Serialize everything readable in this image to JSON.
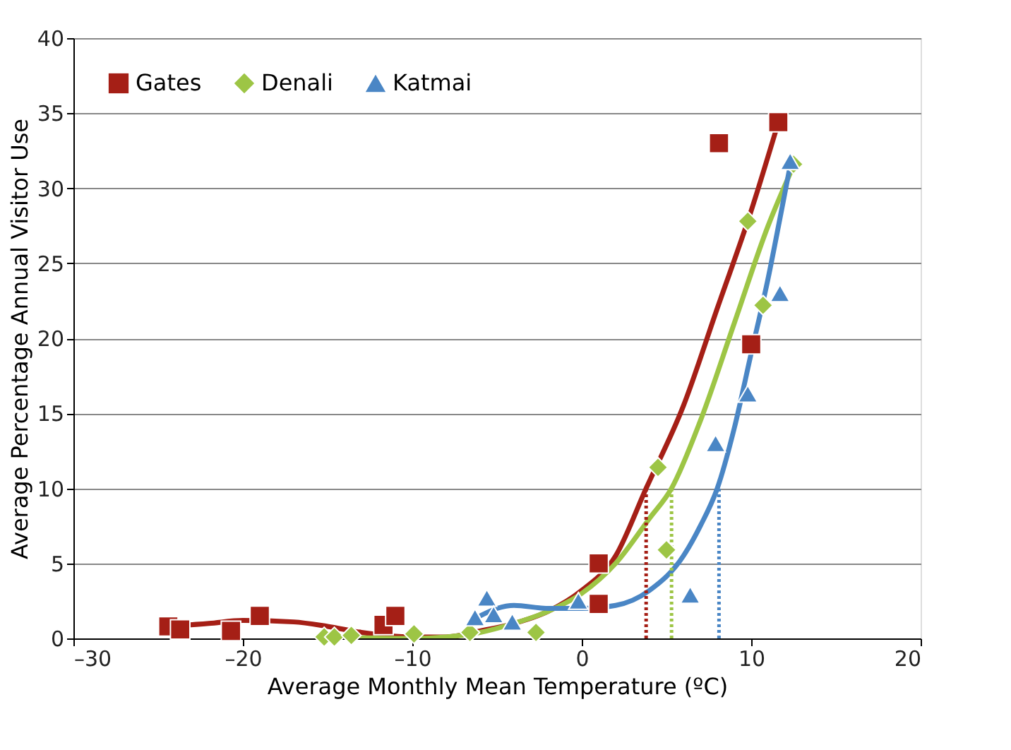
{
  "chart_data": {
    "type": "scatter",
    "xlabel": "Average Monthly Mean Temperature (ºC)",
    "ylabel": "Average Percentage Annual Visitor Use",
    "xlim": [
      -30,
      20
    ],
    "xticks": [
      {
        "value": -30,
        "label": "–30"
      },
      {
        "value": -20,
        "label": "–20"
      },
      {
        "value": -10,
        "label": "–10"
      },
      0,
      10,
      20
    ],
    "ylim": [
      0,
      40
    ],
    "yticks": [
      0,
      5,
      10,
      15,
      20,
      25,
      30,
      35,
      40
    ],
    "grid": "y",
    "legend": "top left",
    "series": [
      {
        "type": "line",
        "color": "#a51f16",
        "line_style": "solid",
        "x": [
          -24.5,
          -22,
          -20,
          -17,
          -15,
          -13,
          -10,
          -8,
          -6,
          -4,
          -2,
          0,
          2,
          3.8,
          6,
          8,
          10,
          11.5
        ],
        "values": [
          0.8,
          1.0,
          1.2,
          1.1,
          0.8,
          0.4,
          0.1,
          0.1,
          0.5,
          1.0,
          1.8,
          3.2,
          5.5,
          10,
          15.5,
          22,
          28.5,
          34
        ]
      },
      {
        "type": "line",
        "color": "#9dc545",
        "line_style": "solid",
        "x": [
          -15,
          -10,
          -8,
          -6,
          -4,
          -2,
          0,
          2,
          4,
          5.3,
          7,
          9,
          11,
          12.5
        ],
        "values": [
          0.1,
          0,
          0.1,
          0.4,
          1.0,
          1.8,
          3.0,
          5,
          8,
          10,
          14.5,
          21,
          27.5,
          31.5
        ]
      },
      {
        "type": "line",
        "color": "#4a86c5",
        "line_style": "solid",
        "x": [
          -6,
          -5,
          -4,
          -2,
          0,
          2,
          4,
          6,
          7,
          8,
          9,
          10,
          11,
          11.7,
          12.3
        ],
        "values": [
          1.5,
          2.0,
          2.2,
          2.0,
          2.0,
          2.2,
          3.2,
          5.5,
          7.5,
          10,
          14,
          19,
          24,
          28,
          31.5
        ]
      },
      {
        "type": "line",
        "color": "#a51f16",
        "line_style": "dotted",
        "x": [
          3.8,
          3.8
        ],
        "values": [
          0,
          10
        ]
      },
      {
        "type": "line",
        "color": "#9dc545",
        "line_style": "dotted",
        "x": [
          5.3,
          5.3
        ],
        "values": [
          0,
          10
        ]
      },
      {
        "type": "line",
        "color": "#4a86c5",
        "line_style": "dotted",
        "x": [
          8.1,
          8.1
        ],
        "values": [
          0,
          10
        ]
      },
      {
        "name": "Gates",
        "color": "#a51f16",
        "marker": "square",
        "x": [
          -24.4,
          -23.7,
          -20.7,
          -19.0,
          -11.7,
          -11.0,
          1.0,
          1.0,
          8.1,
          11.6,
          10.0
        ],
        "values": [
          0.8,
          0.6,
          0.5,
          1.5,
          0.9,
          1.5,
          2.3,
          5.0,
          33,
          34.4,
          19.6
        ]
      },
      {
        "name": "Denali",
        "color": "#9dc545",
        "marker": "diamond",
        "x": [
          -15.2,
          -14.6,
          -13.6,
          -9.9,
          -6.6,
          -2.7,
          4.5,
          5.0,
          9.8,
          10.7,
          12.5
        ],
        "values": [
          0.1,
          0.1,
          0.2,
          0.3,
          0.4,
          0.4,
          11.4,
          5.9,
          27.8,
          22.2,
          31.6
        ]
      },
      {
        "name": "Katmai",
        "color": "#4a86c5",
        "marker": "triangle",
        "x": [
          -5.6,
          -6.3,
          -5.2,
          -4.1,
          -0.2,
          6.4,
          7.9,
          9.8,
          11.7,
          12.3
        ],
        "values": [
          2.7,
          1.4,
          1.6,
          1.1,
          2.5,
          2.9,
          13.0,
          16.3,
          23.0,
          31.8
        ]
      }
    ]
  }
}
